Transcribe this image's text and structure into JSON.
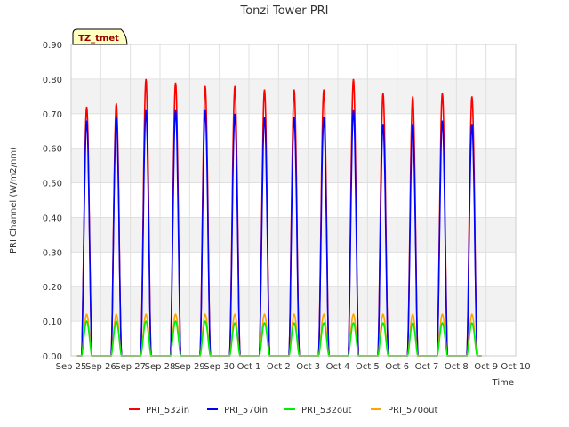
{
  "chart_data": {
    "type": "line",
    "title": "Tonzi Tower PRI",
    "xlabel": "Time",
    "ylabel": "PRI Channel (W/m2/nm)",
    "ylim": [
      0,
      0.9
    ],
    "yticks": [
      "0.00",
      "0.10",
      "0.20",
      "0.30",
      "0.40",
      "0.50",
      "0.60",
      "0.70",
      "0.80",
      "0.90"
    ],
    "xticks": [
      "Sep 25",
      "Sep 26",
      "Sep 27",
      "Sep 28",
      "Sep 29",
      "Sep 30",
      "Oct 1",
      "Oct 2",
      "Oct 3",
      "Oct 4",
      "Oct 5",
      "Oct 6",
      "Oct 7",
      "Oct 8",
      "Oct 9",
      "Oct 10"
    ],
    "xlim_days": [
      0,
      15
    ],
    "grid": true,
    "band_shading": true,
    "annotation": "TZ_tmet",
    "legend_position": "bottom",
    "series": [
      {
        "name": "PRI_532in",
        "color": "#ff0000",
        "daily_peaks": [
          0.72,
          0.73,
          0.8,
          0.79,
          0.78,
          0.78,
          0.77,
          0.77,
          0.77,
          0.8,
          0.76,
          0.75,
          0.76,
          0.75
        ]
      },
      {
        "name": "PRI_570in",
        "color": "#0000ff",
        "daily_peaks": [
          0.68,
          0.69,
          0.71,
          0.71,
          0.71,
          0.7,
          0.69,
          0.69,
          0.69,
          0.71,
          0.67,
          0.67,
          0.68,
          0.67
        ]
      },
      {
        "name": "PRI_532out",
        "color": "#00ee00",
        "daily_peaks": [
          0.1,
          0.1,
          0.1,
          0.1,
          0.1,
          0.095,
          0.095,
          0.095,
          0.095,
          0.095,
          0.095,
          0.095,
          0.095,
          0.095
        ]
      },
      {
        "name": "PRI_570out",
        "color": "#ffa500",
        "daily_peaks": [
          0.12,
          0.12,
          0.12,
          0.12,
          0.12,
          0.12,
          0.12,
          0.12,
          0.12,
          0.12,
          0.12,
          0.12,
          0.12,
          0.12
        ]
      }
    ]
  }
}
